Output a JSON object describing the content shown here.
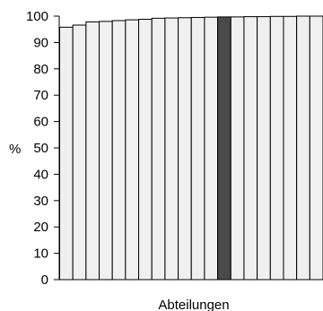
{
  "chart_data": {
    "type": "bar",
    "ylabel": "%",
    "xlabel": "Abteilungen",
    "ylim": [
      0,
      100
    ],
    "yticks": [
      0,
      10,
      20,
      30,
      40,
      50,
      60,
      70,
      80,
      90,
      100
    ],
    "grid": false,
    "highlight_index": 12,
    "colors": {
      "bar_fill": "#f0f0f0",
      "highlight_fill": "#4a4a4a",
      "stroke": "#000000"
    },
    "values": [
      95.8,
      96.6,
      97.8,
      98.0,
      98.3,
      98.6,
      98.8,
      99.2,
      99.3,
      99.4,
      99.5,
      99.6,
      99.7,
      99.7,
      99.8,
      99.8,
      99.9,
      99.9,
      100,
      100
    ]
  }
}
